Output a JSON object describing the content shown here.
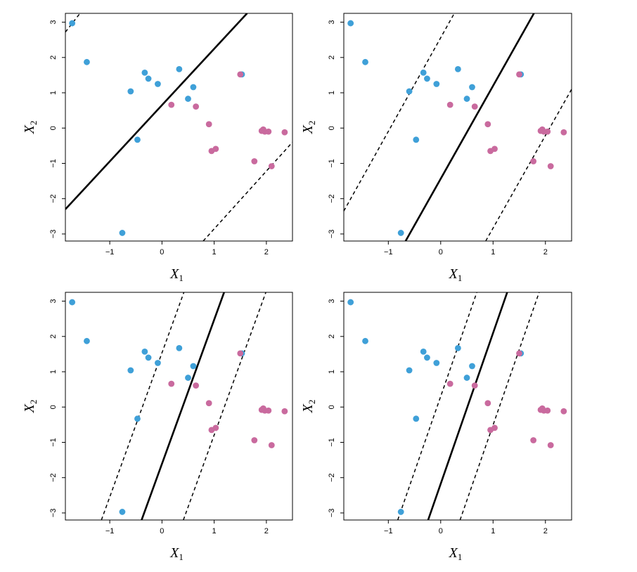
{
  "chart_data": [
    {
      "type": "scatter",
      "xlabel": "X",
      "xlabel_sub": "1",
      "ylabel": "X",
      "ylabel_sub": "2",
      "xlim": [
        -1.85,
        2.5
      ],
      "ylim": [
        -3.2,
        3.25
      ],
      "xticks": [
        -1,
        0,
        1,
        2
      ],
      "yticks": [
        -3,
        -2,
        -1,
        0,
        1,
        2,
        3
      ],
      "grid": false,
      "hyperplane": {
        "solid": [
          [
            -1.85,
            -2.3
          ],
          [
            1.63,
            3.25
          ]
        ],
        "dashed": [
          [
            [
              -1.85,
              2.72
            ],
            [
              -1.57,
              3.25
            ]
          ],
          [
            [
              0.79,
              -3.2
            ],
            [
              2.5,
              -0.4
            ]
          ]
        ]
      }
    },
    {
      "type": "scatter",
      "xlabel": "X",
      "xlabel_sub": "1",
      "ylabel": "X",
      "ylabel_sub": "2",
      "xlim": [
        -1.85,
        2.5
      ],
      "ylim": [
        -3.2,
        3.25
      ],
      "xticks": [
        -1,
        0,
        1,
        2
      ],
      "yticks": [
        -3,
        -2,
        -1,
        0,
        1,
        2,
        3
      ],
      "grid": false,
      "hyperplane": {
        "solid": [
          [
            -0.67,
            -3.2
          ],
          [
            1.78,
            3.25
          ]
        ],
        "dashed": [
          [
            [
              -1.85,
              -2.35
            ],
            [
              0.26,
              3.25
            ]
          ],
          [
            [
              0.86,
              -3.2
            ],
            [
              2.5,
              1.1
            ]
          ]
        ]
      }
    },
    {
      "type": "scatter",
      "xlabel": "X",
      "xlabel_sub": "1",
      "ylabel": "X",
      "ylabel_sub": "2",
      "xlim": [
        -1.85,
        2.5
      ],
      "ylim": [
        -3.2,
        3.25
      ],
      "xticks": [
        -1,
        0,
        1,
        2
      ],
      "yticks": [
        -3,
        -2,
        -1,
        0,
        1,
        2,
        3
      ],
      "grid": false,
      "hyperplane": {
        "solid": [
          [
            -0.39,
            -3.2
          ],
          [
            1.19,
            3.25
          ]
        ],
        "dashed": [
          [
            [
              -1.16,
              -3.2
            ],
            [
              0.42,
              3.25
            ]
          ],
          [
            [
              0.41,
              -3.2
            ],
            [
              1.99,
              3.25
            ]
          ]
        ]
      }
    },
    {
      "type": "scatter",
      "xlabel": "X",
      "xlabel_sub": "1",
      "ylabel": "X",
      "ylabel_sub": "2",
      "xlim": [
        -1.85,
        2.5
      ],
      "ylim": [
        -3.2,
        3.25
      ],
      "xticks": [
        -1,
        0,
        1,
        2
      ],
      "yticks": [
        -3,
        -2,
        -1,
        0,
        1,
        2,
        3
      ],
      "grid": false,
      "hyperplane": {
        "solid": [
          [
            -0.24,
            -3.2
          ],
          [
            1.27,
            3.25
          ]
        ],
        "dashed": [
          [
            [
              -0.82,
              -3.2
            ],
            [
              0.69,
              3.25
            ]
          ],
          [
            [
              0.37,
              -3.2
            ],
            [
              1.88,
              3.25
            ]
          ]
        ]
      }
    }
  ],
  "points": {
    "blue": [
      [
        -1.72,
        2.97
      ],
      [
        -1.44,
        1.87
      ],
      [
        -0.76,
        -2.97
      ],
      [
        -0.6,
        1.04
      ],
      [
        -0.47,
        -0.33
      ],
      [
        -0.33,
        1.57
      ],
      [
        -0.26,
        1.4
      ],
      [
        -0.08,
        1.25
      ],
      [
        0.33,
        1.67
      ],
      [
        0.5,
        0.83
      ],
      [
        0.6,
        1.16
      ],
      [
        1.53,
        1.52
      ]
    ],
    "pink": [
      [
        0.18,
        0.66
      ],
      [
        0.65,
        0.61
      ],
      [
        0.9,
        0.11
      ],
      [
        0.95,
        -0.65
      ],
      [
        1.03,
        -0.59
      ],
      [
        1.5,
        1.52
      ],
      [
        1.77,
        -0.94
      ],
      [
        1.91,
        -0.08
      ],
      [
        1.94,
        -0.04
      ],
      [
        1.97,
        -0.1
      ],
      [
        2.04,
        -0.1
      ],
      [
        2.1,
        -1.08
      ],
      [
        2.35,
        -0.12
      ]
    ]
  },
  "colors": {
    "blue": "#3fa0d8",
    "pink": "#c96a9e",
    "line": "#000000"
  }
}
